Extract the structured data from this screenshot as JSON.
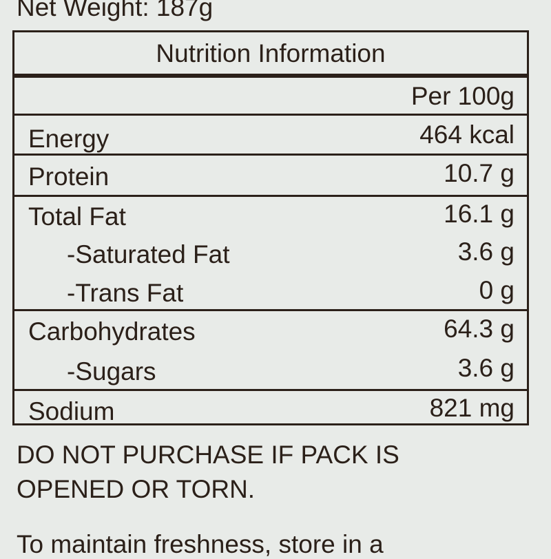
{
  "net_weight": "Net Weight: 187g",
  "table": {
    "title": "Nutrition Information",
    "column_header": "Per 100g",
    "rows": [
      {
        "label": "Energy",
        "value": "464 kcal"
      },
      {
        "label": "Protein",
        "value": "10.7 g"
      },
      {
        "label": "Total Fat",
        "value": "16.1 g"
      },
      {
        "label": "-Saturated Fat",
        "value": "3.6 g"
      },
      {
        "label": "-Trans Fat",
        "value": "0 g"
      },
      {
        "label": "Carbohydrates",
        "value": "64.3 g"
      },
      {
        "label": "-Sugars",
        "value": "3.6 g"
      },
      {
        "label": "Sodium",
        "value": "821 mg"
      }
    ]
  },
  "warning": [
    "DO NOT PURCHASE IF PACK IS",
    "OPENED OR TORN."
  ],
  "storage": "To maintain freshness, store in a"
}
